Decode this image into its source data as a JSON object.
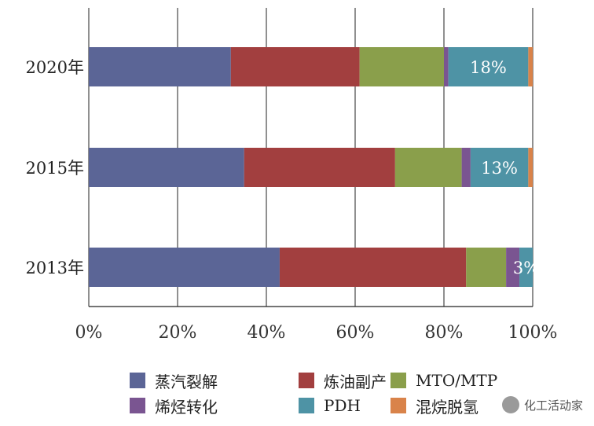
{
  "chart_data": {
    "type": "bar",
    "orientation": "horizontal",
    "stacked": true,
    "categories": [
      "2020年",
      "2015年",
      "2013年"
    ],
    "series": [
      {
        "name": "蒸汽裂解",
        "color": "#5b6596",
        "values": [
          32,
          35,
          43
        ]
      },
      {
        "name": "炼油副产",
        "color": "#a23f3f",
        "values": [
          29,
          34,
          42
        ]
      },
      {
        "name": "MTO/MTP",
        "color": "#8a9f4b",
        "values": [
          19,
          15,
          9
        ]
      },
      {
        "name": "烯烃转化",
        "color": "#7a5591",
        "values": [
          1,
          2,
          3
        ]
      },
      {
        "name": "PDH",
        "color": "#4e93a5",
        "values": [
          18,
          13,
          3
        ]
      },
      {
        "name": "混烷脱氢",
        "color": "#d9834a",
        "values": [
          1,
          1,
          0
        ]
      }
    ],
    "data_labels": [
      "18%",
      "13%",
      "3%"
    ],
    "x_ticks": [
      "0%",
      "20%",
      "40%",
      "60%",
      "80%",
      "100%"
    ],
    "xlim": [
      0,
      100
    ],
    "grid": "vertical",
    "legend_position": "bottom"
  },
  "watermark": {
    "text": "化工活动家"
  }
}
